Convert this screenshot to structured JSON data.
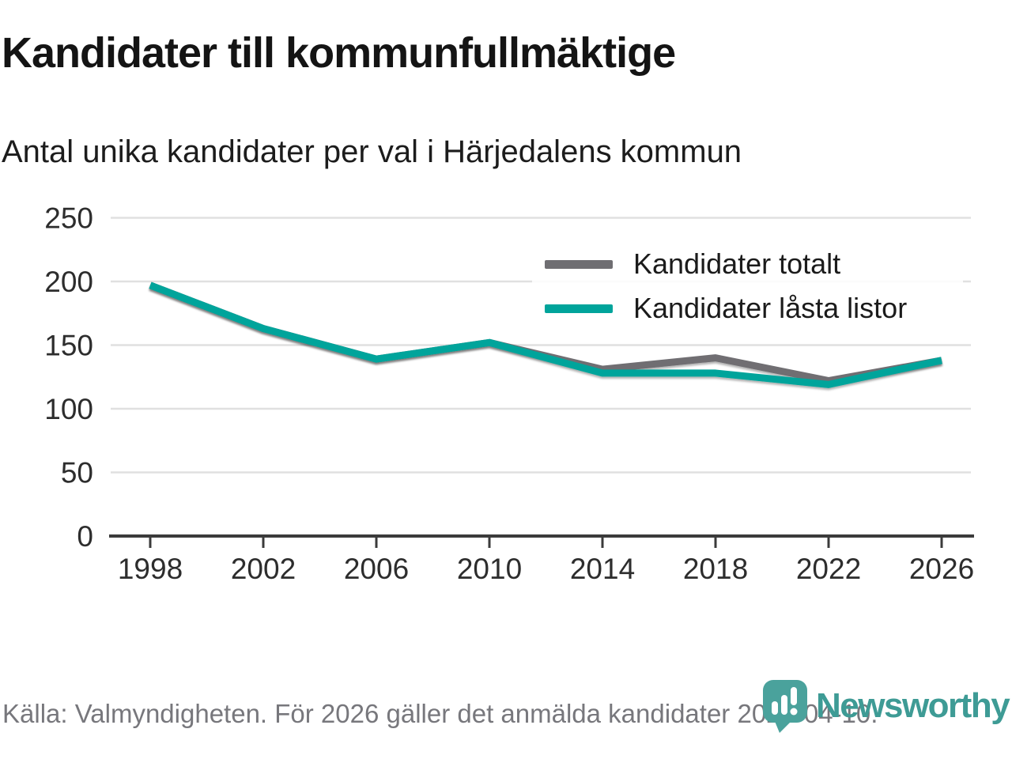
{
  "header": {
    "title": "Kandidater till kommunfullmäktige",
    "subtitle": "Antal unika kandidater per val i Härjedalens kommun"
  },
  "footer": {
    "source": "Källa: Valmyndigheten. För 2026 gäller det anmälda kandidater 2026-04-10.",
    "brand": "Newsworthy"
  },
  "colors": {
    "series_total": "#6f6e72",
    "series_locked": "#00a49b",
    "grid": "#e0e0e0",
    "axis": "#3b3b3b",
    "tick_label": "#2d2d2d",
    "brand_teal": "#3E9B95",
    "footer_gray": "#77777c"
  },
  "chart_data": {
    "type": "line",
    "categories": [
      "1998",
      "2002",
      "2006",
      "2010",
      "2014",
      "2018",
      "2022",
      "2026"
    ],
    "series": [
      {
        "name": "Kandidater totalt",
        "color": "#6f6e72",
        "values": [
          197,
          163,
          139,
          152,
          131,
          140,
          122,
          138
        ]
      },
      {
        "name": "Kandidater låsta listor",
        "color": "#00a49b",
        "values": [
          197,
          163,
          139,
          152,
          128,
          128,
          119,
          138
        ]
      }
    ],
    "title": "Kandidater till kommunfullmäktige",
    "subtitle": "Antal unika kandidater per val i Härjedalens kommun",
    "xlabel": "",
    "ylabel": "",
    "yticks": [
      0,
      50,
      100,
      150,
      200,
      250
    ],
    "ylim": [
      0,
      250
    ],
    "grid": true,
    "legend_position": "top-right"
  }
}
